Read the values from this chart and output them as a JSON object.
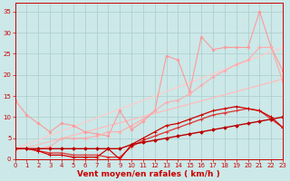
{
  "background_color": "#cce8e8",
  "grid_color": "#aacccc",
  "x_label": "Vent moyen/en rafales ( km/h )",
  "x_ticks": [
    0,
    1,
    2,
    3,
    4,
    5,
    6,
    7,
    8,
    9,
    10,
    11,
    12,
    13,
    14,
    15,
    16,
    17,
    18,
    19,
    20,
    21,
    22,
    23
  ],
  "ylim": [
    0,
    37
  ],
  "xlim": [
    0,
    23
  ],
  "yticks": [
    0,
    5,
    10,
    15,
    20,
    25,
    30,
    35
  ],
  "series": [
    {
      "x": [
        0,
        23
      ],
      "y": [
        2.0,
        19.0
      ],
      "color": "#ffbbbb",
      "marker": "None",
      "markersize": 0,
      "linewidth": 0.9,
      "style": "-"
    },
    {
      "x": [
        0,
        23
      ],
      "y": [
        2.5,
        26.5
      ],
      "color": "#ffcccc",
      "marker": "None",
      "markersize": 0,
      "linewidth": 0.9,
      "style": "-"
    },
    {
      "x": [
        0,
        1,
        2,
        3,
        4,
        5,
        6,
        7,
        8,
        9,
        10,
        11,
        12,
        13,
        14,
        15,
        16,
        17,
        18,
        19,
        20,
        21,
        22,
        23
      ],
      "y": [
        14.0,
        10.5,
        8.5,
        6.5,
        8.5,
        8.0,
        6.5,
        6.0,
        5.5,
        11.5,
        7.0,
        9.0,
        11.5,
        24.5,
        23.5,
        16.0,
        29.0,
        26.0,
        26.5,
        26.5,
        26.5,
        35.0,
        26.5,
        21.0
      ],
      "color": "#ff9999",
      "marker": "D",
      "markersize": 1.5,
      "linewidth": 0.8,
      "style": "-"
    },
    {
      "x": [
        0,
        1,
        2,
        3,
        4,
        5,
        6,
        7,
        8,
        9,
        10,
        11,
        12,
        13,
        14,
        15,
        16,
        17,
        18,
        19,
        20,
        21,
        22,
        23
      ],
      "y": [
        2.5,
        2.5,
        2.5,
        3.0,
        5.0,
        5.0,
        5.0,
        5.5,
        6.5,
        6.5,
        8.0,
        9.5,
        11.5,
        13.5,
        14.0,
        15.5,
        17.5,
        19.5,
        21.0,
        22.5,
        23.5,
        26.5,
        26.5,
        18.5
      ],
      "color": "#ffaaaa",
      "marker": "D",
      "markersize": 1.5,
      "linewidth": 0.8,
      "style": "-"
    },
    {
      "x": [
        0,
        1,
        2,
        3,
        4,
        5,
        6,
        7,
        8,
        9,
        10,
        11,
        12,
        13,
        14,
        15,
        16,
        17,
        18,
        19,
        20,
        21,
        22,
        23
      ],
      "y": [
        2.5,
        2.5,
        2.0,
        1.5,
        1.5,
        1.0,
        1.0,
        1.0,
        0.5,
        0.5,
        3.0,
        4.5,
        5.5,
        6.5,
        7.5,
        8.5,
        9.5,
        10.5,
        11.0,
        11.5,
        12.0,
        11.5,
        9.5,
        7.5
      ],
      "color": "#dd3333",
      "marker": "+",
      "markersize": 2.5,
      "linewidth": 0.9,
      "style": "-"
    },
    {
      "x": [
        0,
        1,
        2,
        3,
        4,
        5,
        6,
        7,
        8,
        9,
        10,
        11,
        12,
        13,
        14,
        15,
        16,
        17,
        18,
        19,
        20,
        21,
        22,
        23
      ],
      "y": [
        2.5,
        2.5,
        2.0,
        1.0,
        1.0,
        0.5,
        0.5,
        0.5,
        2.5,
        0.0,
        3.5,
        5.0,
        6.5,
        8.0,
        8.5,
        9.5,
        10.5,
        11.5,
        12.0,
        12.5,
        12.0,
        11.5,
        10.0,
        7.5
      ],
      "color": "#cc0000",
      "marker": "+",
      "markersize": 2.5,
      "linewidth": 0.9,
      "style": "-"
    },
    {
      "x": [
        0,
        1,
        2,
        3,
        4,
        5,
        6,
        7,
        8,
        9,
        10,
        11,
        12,
        13,
        14,
        15,
        16,
        17,
        18,
        19,
        20,
        21,
        22,
        23
      ],
      "y": [
        2.5,
        2.5,
        2.5,
        2.5,
        2.5,
        2.5,
        2.5,
        2.5,
        2.5,
        2.5,
        3.5,
        4.0,
        4.5,
        5.0,
        5.5,
        6.0,
        6.5,
        7.0,
        7.5,
        8.0,
        8.5,
        9.0,
        9.5,
        10.0
      ],
      "color": "#bb0000",
      "marker": "D",
      "markersize": 1.8,
      "linewidth": 1.0,
      "style": "-"
    }
  ],
  "tick_fontsize": 5.0,
  "xlabel_fontsize": 6.5,
  "tick_color": "#cc0000",
  "label_color": "#cc0000",
  "spine_color": "#cc0000"
}
